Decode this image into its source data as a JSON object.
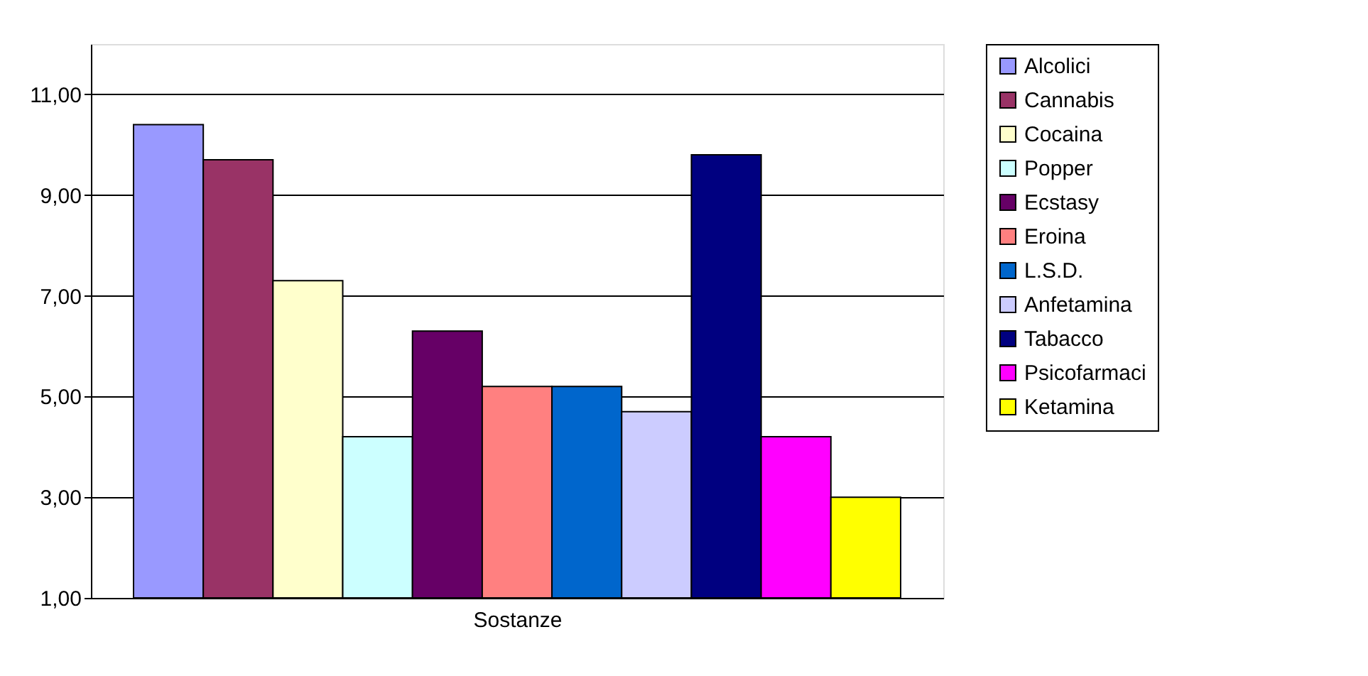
{
  "chart_data": {
    "type": "bar",
    "xlabel": "Sostanze",
    "categories": [
      null
    ],
    "series": [
      {
        "name": "Alcolici",
        "color": "#9999ff",
        "values": [
          10.4
        ]
      },
      {
        "name": "Cannabis",
        "color": "#993366",
        "values": [
          9.7
        ]
      },
      {
        "name": "Cocaina",
        "color": "#ffffcc",
        "values": [
          7.3
        ]
      },
      {
        "name": "Popper",
        "color": "#ccffff",
        "values": [
          4.2
        ]
      },
      {
        "name": "Ecstasy",
        "color": "#660066",
        "values": [
          6.3
        ]
      },
      {
        "name": "Eroina",
        "color": "#ff8080",
        "values": [
          5.2
        ]
      },
      {
        "name": "L.S.D.",
        "color": "#0066cc",
        "values": [
          5.2
        ]
      },
      {
        "name": "Anfetamina",
        "color": "#ccccff",
        "values": [
          4.7
        ]
      },
      {
        "name": "Tabacco",
        "color": "#000080",
        "values": [
          9.8
        ]
      },
      {
        "name": "Psicofarmaci",
        "color": "#ff00ff",
        "values": [
          4.2
        ]
      },
      {
        "name": "Ketamina",
        "color": "#ffff00",
        "values": [
          3.0
        ]
      }
    ],
    "ylim": [
      1,
      12
    ],
    "yticks": [
      {
        "value": 1,
        "label": "1,00"
      },
      {
        "value": 3,
        "label": "3,00"
      },
      {
        "value": 5,
        "label": "5,00"
      },
      {
        "value": 7,
        "label": "7,00"
      },
      {
        "value": 9,
        "label": "9,00"
      },
      {
        "value": 11,
        "label": "11,00"
      }
    ],
    "grid": "y",
    "legend": "right"
  }
}
